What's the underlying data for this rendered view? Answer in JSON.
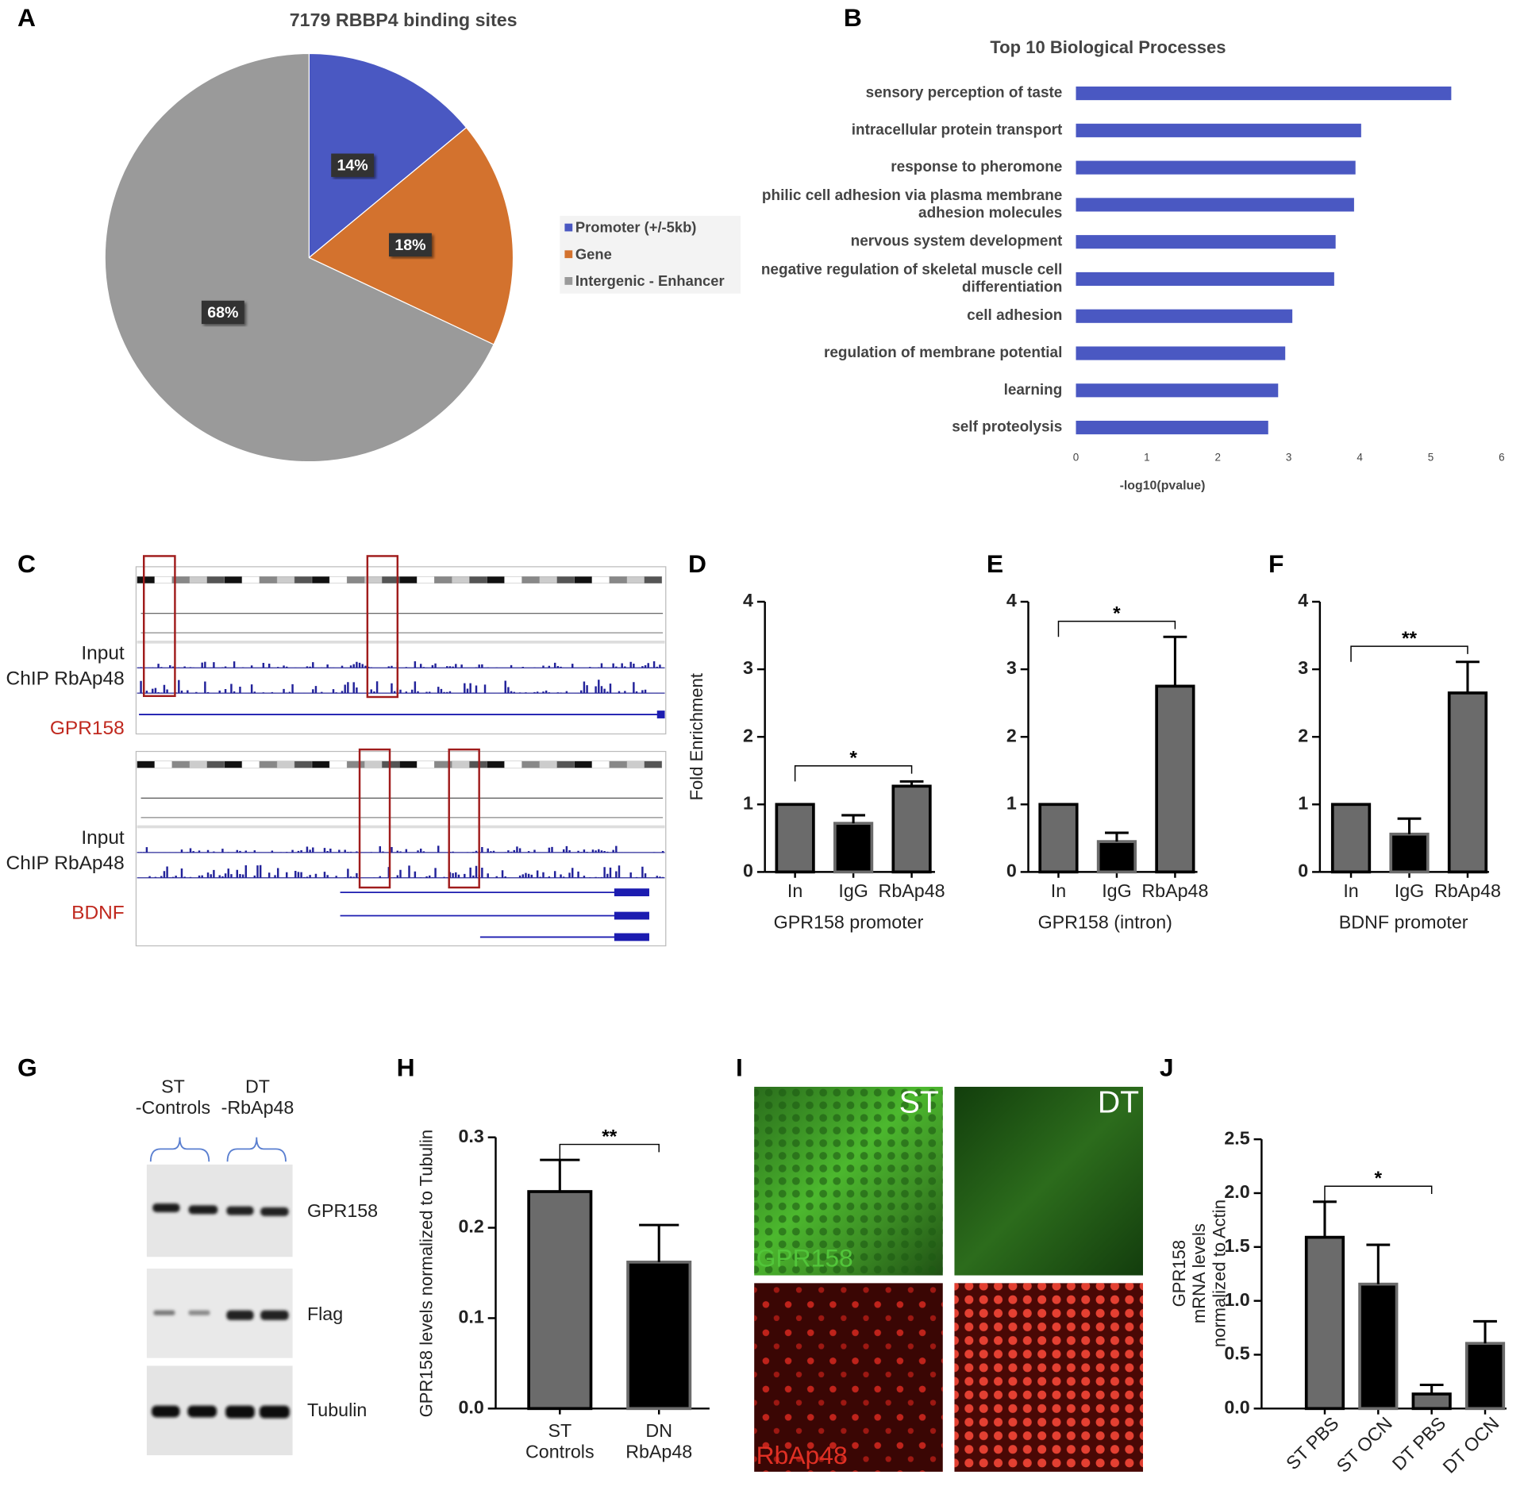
{
  "chart_data": [
    {
      "panel": "A",
      "type": "pie",
      "title": "7179 RBBP4 binding sites",
      "categories": [
        "Promoter (+/-5kb)",
        "Gene",
        "Intergenic - Enhancer"
      ],
      "values": [
        14,
        18,
        68
      ],
      "value_labels": [
        "14%",
        "18%",
        "68%"
      ],
      "colors": [
        "#4a58c2",
        "#d3722e",
        "#9a9a9a"
      ]
    },
    {
      "panel": "B",
      "type": "barh",
      "title": "Top 10 Biological Processes",
      "xlabel": "-log10(pvalue)",
      "categories": [
        "sensory perception of taste",
        "intracellular protein transport",
        "response to pheromone",
        "philic cell adhesion via plasma membrane\nadhesion molecules",
        "nervous system development",
        "negative regulation of skeletal muscle cell\ndifferentiation",
        "cell adhesion",
        "regulation of membrane potential",
        "learning",
        "self proteolysis"
      ],
      "values": [
        5.29,
        4.02,
        3.94,
        3.92,
        3.66,
        3.64,
        3.05,
        2.95,
        2.85,
        2.71
      ],
      "color": "#4a58c2",
      "xlim": [
        0,
        6
      ],
      "xticks": [
        0,
        1,
        2,
        3,
        4,
        5,
        6
      ]
    },
    {
      "panel": "D",
      "type": "bar",
      "ylabel": "Fold Enrichment",
      "xlabel": "GPR158 promoter",
      "categories": [
        "In",
        "IgG",
        "RbAp48"
      ],
      "values": [
        1,
        0.72,
        1.27
      ],
      "errors": [
        0,
        0.12,
        0.07
      ],
      "colors": [
        "#6b6b6b",
        "#000000",
        "#6b6b6b"
      ],
      "edge_colors": [
        "#000000",
        "#6b6b6b",
        "#000000"
      ],
      "ylim": [
        0,
        4
      ],
      "yticks": [
        0,
        1,
        2,
        3,
        4
      ],
      "significance": {
        "label": "*",
        "between": [
          0,
          2
        ]
      }
    },
    {
      "panel": "E",
      "type": "bar",
      "xlabel": "GPR158 (intron)",
      "categories": [
        "In",
        "IgG",
        "RbAp48"
      ],
      "values": [
        1,
        0.45,
        2.75
      ],
      "errors": [
        0,
        0.13,
        0.73
      ],
      "colors": [
        "#6b6b6b",
        "#000000",
        "#6b6b6b"
      ],
      "edge_colors": [
        "#000000",
        "#6b6b6b",
        "#000000"
      ],
      "ylim": [
        0,
        4
      ],
      "yticks": [
        0,
        1,
        2,
        3,
        4
      ],
      "significance": {
        "label": "*",
        "between": [
          0,
          2
        ]
      }
    },
    {
      "panel": "F",
      "type": "bar",
      "xlabel": "BDNF promoter",
      "categories": [
        "In",
        "IgG",
        "RbAp48"
      ],
      "values": [
        1,
        0.56,
        2.65
      ],
      "errors": [
        0,
        0.23,
        0.46
      ],
      "colors": [
        "#6b6b6b",
        "#000000",
        "#6b6b6b"
      ],
      "edge_colors": [
        "#000000",
        "#6b6b6b",
        "#000000"
      ],
      "ylim": [
        0,
        4
      ],
      "yticks": [
        0,
        1,
        2,
        3,
        4
      ],
      "significance": {
        "label": "**",
        "between": [
          0,
          2
        ]
      }
    },
    {
      "panel": "H",
      "type": "bar",
      "ylabel": "GPR158 levels normalized to Tubulin",
      "categories": [
        "ST\nControls",
        "DN\nRbAp48"
      ],
      "values": [
        0.24,
        0.162
      ],
      "errors": [
        0.035,
        0.041
      ],
      "colors": [
        "#6b6b6b",
        "#000000"
      ],
      "edge_colors": [
        "#000000",
        "#6b6b6b"
      ],
      "ylim": [
        0,
        0.3
      ],
      "yticks": [
        {
          "value": 0,
          "label": "0.0"
        },
        0.1,
        0.2,
        0.3
      ],
      "significance": {
        "label": "**",
        "between": [
          0,
          1
        ]
      }
    },
    {
      "panel": "J",
      "type": "bar",
      "ylabel": "GPR158\nmRNA levels\nnormalized to Actin",
      "categories": [
        "ST PBS",
        "ST OCN",
        "DT PBS",
        "DT OCN"
      ],
      "values": [
        1.59,
        1.155,
        0.135,
        0.605
      ],
      "errors": [
        0.33,
        0.365,
        0.085,
        0.205
      ],
      "colors": [
        "#6b6b6b",
        "#000000",
        "#6b6b6b",
        "#000000"
      ],
      "edge_colors": [
        "#000000",
        "#6b6b6b",
        "#000000",
        "#6b6b6b"
      ],
      "ylim": [
        0,
        2.5
      ],
      "yticks": [
        {
          "value": 0,
          "label": "0.0"
        },
        0.5,
        {
          "value": 1,
          "label": "1.0"
        },
        1.5,
        {
          "value": 2,
          "label": "2.0"
        },
        2.5
      ],
      "significance": {
        "label": "*",
        "between": [
          0,
          2
        ]
      }
    }
  ],
  "genome_tracks": {
    "panel": "C",
    "loci": [
      {
        "tracks": [
          "Input",
          "ChIP RbAp48"
        ],
        "gene": "GPR158"
      },
      {
        "tracks": [
          "Input",
          "ChIP RbAp48"
        ],
        "gene": "BDNF"
      }
    ]
  },
  "western_blot": {
    "panel": "G",
    "groups": [
      "ST\n-Controls",
      "DT\n-RbAp48"
    ],
    "rows": [
      "GPR158",
      "Flag",
      "Tubulin"
    ]
  },
  "microscopy": {
    "panel": "I",
    "columns": [
      "ST",
      "DT"
    ],
    "rows": [
      "GPR158",
      "RbAp48"
    ]
  }
}
